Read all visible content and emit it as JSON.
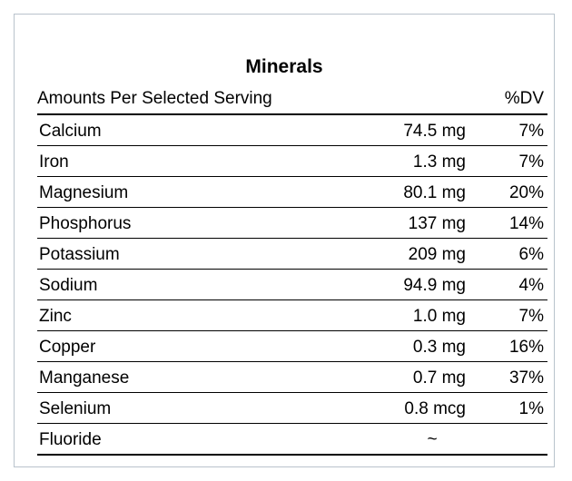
{
  "title": "Minerals",
  "header": {
    "label": "Amounts Per Selected Serving",
    "dv": "%DV"
  },
  "rows": [
    {
      "name": "Calcium",
      "amount": "74.5 mg",
      "dv": "7%"
    },
    {
      "name": "Iron",
      "amount": "1.3 mg",
      "dv": "7%"
    },
    {
      "name": "Magnesium",
      "amount": "80.1 mg",
      "dv": "20%"
    },
    {
      "name": "Phosphorus",
      "amount": "137 mg",
      "dv": "14%"
    },
    {
      "name": "Potassium",
      "amount": "209 mg",
      "dv": "6%"
    },
    {
      "name": "Sodium",
      "amount": "94.9 mg",
      "dv": "4%"
    },
    {
      "name": "Zinc",
      "amount": "1.0 mg",
      "dv": "7%"
    },
    {
      "name": "Copper",
      "amount": "0.3 mg",
      "dv": "16%"
    },
    {
      "name": "Manganese",
      "amount": "0.7 mg",
      "dv": "37%"
    },
    {
      "name": "Selenium",
      "amount": "0.8 mcg",
      "dv": "1%"
    },
    {
      "name": "Fluoride",
      "amount": "~",
      "dv": ""
    }
  ],
  "colors": {
    "panel_border": "#b9c3cc",
    "rule": "#000000"
  }
}
